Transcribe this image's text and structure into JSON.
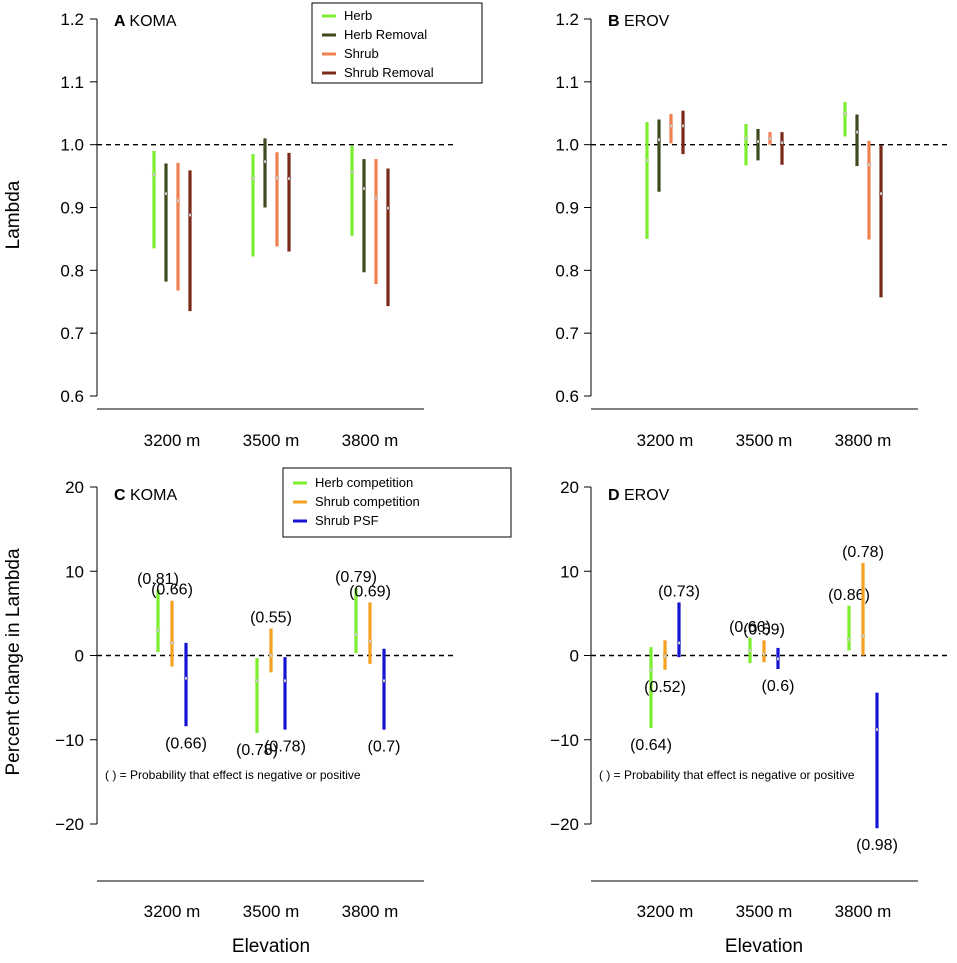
{
  "colors": {
    "herb": "#7CEE2E",
    "herb_removal": "#3C4A1E",
    "shrub": "#F08050",
    "shrub_removal": "#7A2818",
    "herb_competition": "#7CEE2E",
    "shrub_competition": "#F5A020",
    "shrub_psf": "#1414D2"
  },
  "xlabel": "Elevation",
  "chart_data": [
    {
      "id": "A",
      "type": "errorbar",
      "panel_letter": "A",
      "species": "KOMA",
      "ylabel": "Lambda",
      "ylim": [
        0.6,
        1.2
      ],
      "yticks": [
        "0.6",
        "0.7",
        "0.8",
        "0.9",
        "1.0",
        "1.1",
        "1.2"
      ],
      "categories": [
        "3200 m",
        "3500 m",
        "3800 m"
      ],
      "reference_line": 1.0,
      "legend": [
        "Herb",
        "Herb Removal",
        "Shrub",
        "Shrub Removal"
      ],
      "series": [
        {
          "name": "Herb",
          "color_key": "herb",
          "mean": [
            0.952,
            0.946,
            0.957
          ],
          "low": [
            0.835,
            0.822,
            0.855
          ],
          "high": [
            0.99,
            0.985,
            0.998
          ]
        },
        {
          "name": "Herb Removal",
          "color_key": "herb_removal",
          "mean": [
            0.922,
            0.973,
            0.93
          ],
          "low": [
            0.782,
            0.9,
            0.797
          ],
          "high": [
            0.97,
            1.01,
            0.977
          ]
        },
        {
          "name": "Shrub",
          "color_key": "shrub",
          "mean": [
            0.911,
            0.947,
            0.915
          ],
          "low": [
            0.768,
            0.838,
            0.778
          ],
          "high": [
            0.971,
            0.988,
            0.977
          ]
        },
        {
          "name": "Shrub Removal",
          "color_key": "shrub_removal",
          "mean": [
            0.888,
            0.946,
            0.899
          ],
          "low": [
            0.735,
            0.83,
            0.743
          ],
          "high": [
            0.959,
            0.987,
            0.962
          ]
        }
      ]
    },
    {
      "id": "B",
      "type": "errorbar",
      "panel_letter": "B",
      "species": "EROV",
      "ylabel": "",
      "ylim": [
        0.6,
        1.2
      ],
      "yticks": [
        "0.6",
        "0.7",
        "0.8",
        "0.9",
        "1.0",
        "1.1",
        "1.2"
      ],
      "categories": [
        "3200 m",
        "3500 m",
        "3800 m"
      ],
      "reference_line": 1.0,
      "legend": [],
      "series": [
        {
          "name": "Herb",
          "color_key": "herb",
          "mean": [
            0.975,
            1.01,
            1.05
          ],
          "low": [
            0.85,
            0.967,
            1.013
          ],
          "high": [
            1.036,
            1.033,
            1.068
          ]
        },
        {
          "name": "Herb Removal",
          "color_key": "herb_removal",
          "mean": [
            1.008,
            1.005,
            1.02
          ],
          "low": [
            0.925,
            0.975,
            0.966
          ],
          "high": [
            1.04,
            1.025,
            1.048
          ]
        },
        {
          "name": "Shrub",
          "color_key": "shrub",
          "mean": [
            1.03,
            1.01,
            0.968
          ],
          "low": [
            1.002,
            1.0,
            0.849
          ],
          "high": [
            1.049,
            1.02,
            1.006
          ]
        },
        {
          "name": "Shrub Removal",
          "color_key": "shrub_removal",
          "mean": [
            1.03,
            1.003,
            0.922
          ],
          "low": [
            0.985,
            0.968,
            0.757
          ],
          "high": [
            1.054,
            1.02,
            0.999
          ]
        }
      ]
    },
    {
      "id": "C",
      "type": "errorbar",
      "panel_letter": "C",
      "species": "KOMA",
      "ylabel": "Percent change in Lambda",
      "ylim": [
        -20,
        20
      ],
      "yticks": [
        "−20",
        "−10",
        "0",
        "10",
        "20"
      ],
      "categories": [
        "3200 m",
        "3500 m",
        "3800 m"
      ],
      "reference_line": 0,
      "legend": [
        "Herb competition",
        "Shrub competition",
        "Shrub PSF"
      ],
      "note": "( ) = Probability that effect is negative or positive",
      "series": [
        {
          "name": "Herb competition",
          "color_key": "herb_competition",
          "mean": [
            3.0,
            -3.0,
            2.5
          ],
          "low": [
            0.4,
            -9.2,
            0.3
          ],
          "high": [
            7.8,
            -0.3,
            8.0
          ],
          "prob": [
            "(0.81)",
            "(0.78)",
            "(0.79)"
          ],
          "prob_pos": [
            "top",
            "bottom",
            "top"
          ]
        },
        {
          "name": "Shrub competition",
          "color_key": "shrub_competition",
          "mean": [
            1.5,
            0.0,
            1.7
          ],
          "low": [
            -1.3,
            -2.0,
            -1.0
          ],
          "high": [
            6.5,
            3.2,
            6.3
          ],
          "prob": [
            "(0.66)",
            "(0.55)",
            "(0.69)"
          ],
          "prob_pos": [
            "top",
            "top",
            "top"
          ]
        },
        {
          "name": "Shrub PSF",
          "color_key": "shrub_psf",
          "mean": [
            -2.7,
            -3.0,
            -3.0
          ],
          "low": [
            -8.4,
            -8.8,
            -8.8
          ],
          "high": [
            1.5,
            -0.2,
            0.8
          ],
          "prob": [
            "(0.66)",
            "(0.78)",
            "(0.7)"
          ],
          "prob_pos": [
            "bottom",
            "bottom",
            "bottom"
          ]
        }
      ]
    },
    {
      "id": "D",
      "type": "errorbar",
      "panel_letter": "D",
      "species": "EROV",
      "ylabel": "",
      "ylim": [
        -20,
        20
      ],
      "yticks": [
        "−20",
        "−10",
        "0",
        "10",
        "20"
      ],
      "categories": [
        "3200 m",
        "3500 m",
        "3800 m"
      ],
      "reference_line": 0,
      "legend": [],
      "note": "( ) = Probability that effect is negative or positive",
      "series": [
        {
          "name": "Herb competition",
          "color_key": "herb_competition",
          "mean": [
            -1.7,
            0.6,
            1.9
          ],
          "low": [
            -8.6,
            -0.9,
            0.6
          ],
          "high": [
            1.0,
            2.1,
            5.9
          ],
          "prob": [
            "(0.64)",
            "(0.66)",
            "(0.86)"
          ],
          "prob_pos": [
            "bottom",
            "top",
            "top"
          ]
        },
        {
          "name": "Shrub competition",
          "color_key": "shrub_competition",
          "mean": [
            -0.1,
            0.2,
            2.3
          ],
          "low": [
            -1.7,
            -0.8,
            0.0
          ],
          "high": [
            1.8,
            1.8,
            11.0
          ],
          "prob": [
            "(0.52)",
            "(0.59)",
            "(0.78)"
          ],
          "prob_pos": [
            "bottom",
            "top",
            "top"
          ]
        },
        {
          "name": "Shrub PSF",
          "color_key": "shrub_psf",
          "mean": [
            1.5,
            -0.4,
            -8.8
          ],
          "low": [
            -0.2,
            -1.6,
            -20.5
          ],
          "high": [
            6.3,
            0.9,
            -4.4
          ],
          "prob": [
            "(0.73)",
            "(0.6)",
            "(0.98)"
          ],
          "prob_pos": [
            "top",
            "bottom",
            "bottom"
          ]
        }
      ]
    }
  ]
}
